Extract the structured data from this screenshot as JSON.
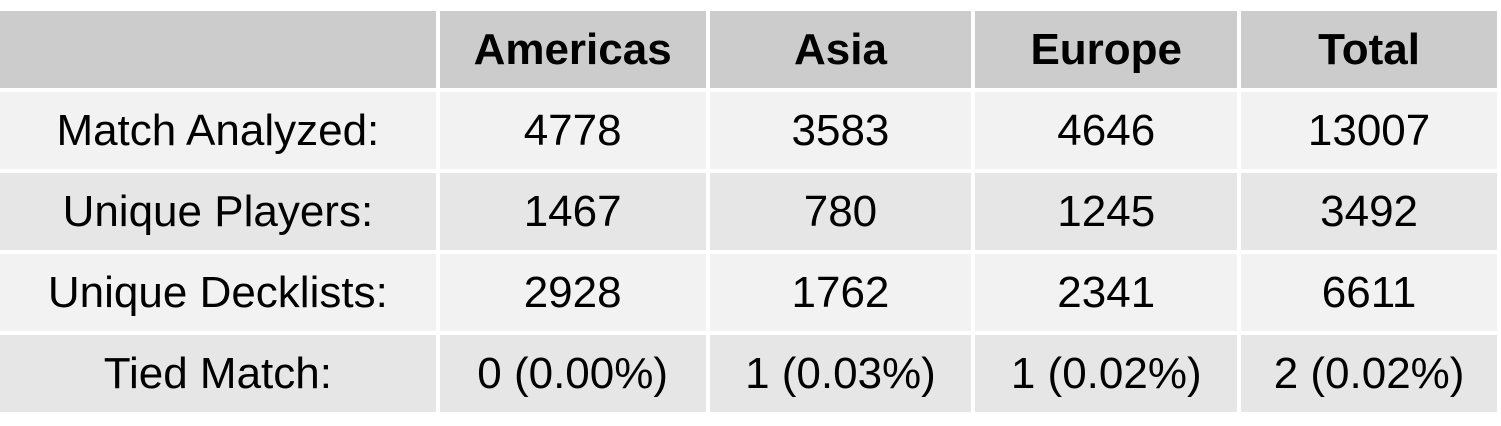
{
  "table": {
    "columns": [
      "Americas",
      "Asia",
      "Europe",
      "Total"
    ],
    "rows": [
      {
        "label": "Match Analyzed:",
        "values": [
          "4778",
          "3583",
          "4646",
          "13007"
        ]
      },
      {
        "label": "Unique Players:",
        "values": [
          "1467",
          "780",
          "1245",
          "3492"
        ]
      },
      {
        "label": "Unique Decklists:",
        "values": [
          "2928",
          "1762",
          "2341",
          "6611"
        ]
      },
      {
        "label": "Tied Match:",
        "values": [
          "0 (0.00%)",
          "1 (0.03%)",
          "1 (0.02%)",
          "2 (0.02%)"
        ]
      }
    ]
  },
  "colors": {
    "header_bg": "#cccccc",
    "row_light_bg": "#f2f2f2",
    "row_dark_bg": "#e6e6e6",
    "text": "#000000"
  }
}
